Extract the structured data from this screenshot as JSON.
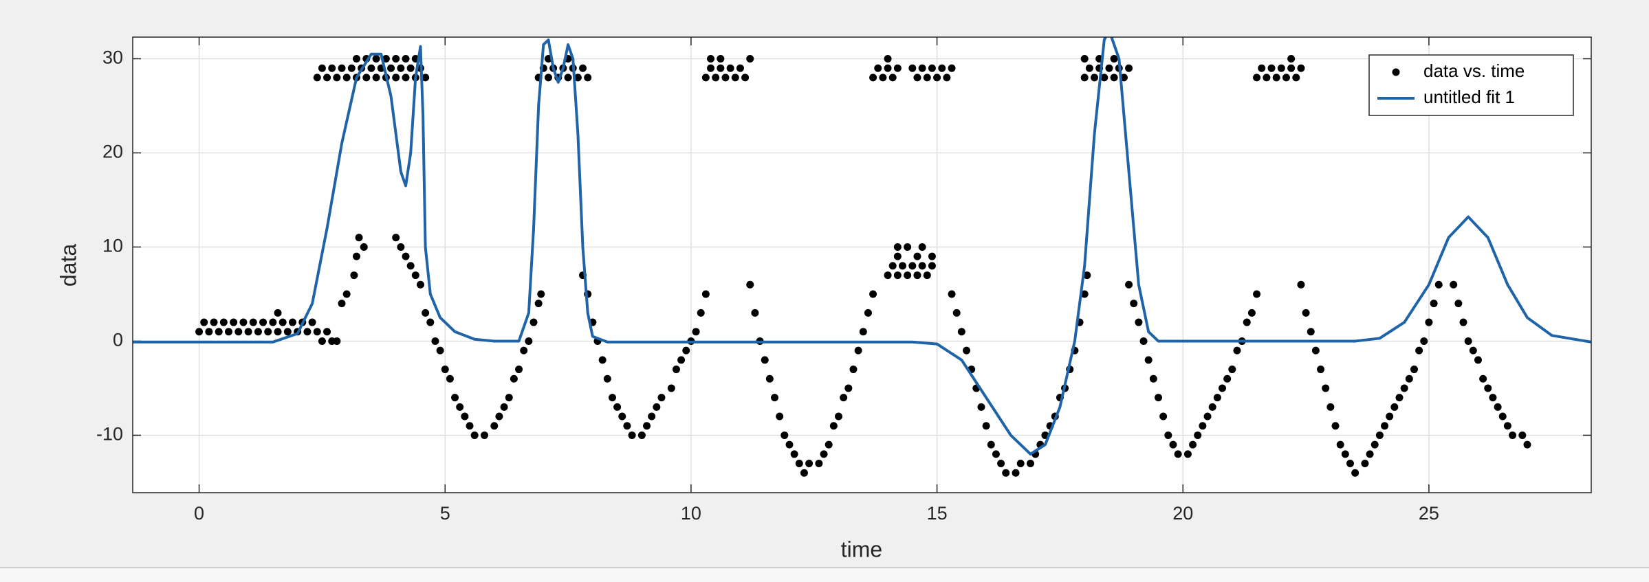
{
  "chart_data": {
    "type": "scatter",
    "xlabel": "time",
    "ylabel": "data",
    "xlim": [
      -1.35,
      28.3
    ],
    "ylim": [
      -16.1,
      32.3
    ],
    "xticks": [
      0,
      5,
      10,
      15,
      20,
      25
    ],
    "yticks": [
      -10,
      0,
      10,
      20,
      30
    ],
    "grid": true,
    "legend": "upper right",
    "series": [
      {
        "name": "data vs. time",
        "type": "scatter",
        "color": "#000000",
        "x": [
          0,
          0.2,
          0.4,
          0.6,
          0.8,
          1,
          1.2,
          1.4,
          1.6,
          1.8,
          2,
          2.2,
          2.4,
          0.1,
          0.3,
          0.5,
          0.7,
          0.9,
          1.1,
          1.3,
          1.5,
          1.7,
          1.9,
          2.1,
          2.3,
          1.6,
          2.5,
          2.6,
          2.7,
          2.8,
          2.9,
          3,
          3.15,
          3.2,
          3.25,
          3.35,
          4,
          4.1,
          4.2,
          4.3,
          4.4,
          4.5,
          4.6,
          4.7,
          4.8,
          4.9,
          5,
          5.1,
          5.2,
          5.3,
          5.4,
          5.5,
          5.6,
          5.8,
          6,
          6.1,
          6.2,
          6.3,
          6.4,
          6.5,
          6.6,
          6.7,
          6.8,
          6.9,
          6.95,
          2.4,
          2.6,
          2.8,
          3,
          3.2,
          3.4,
          3.6,
          3.8,
          4,
          4.2,
          4.4,
          4.6,
          2.5,
          2.7,
          2.9,
          3.1,
          3.3,
          3.5,
          3.7,
          3.9,
          4.1,
          4.3,
          4.5,
          3.2,
          3.4,
          3.6,
          3.8,
          4,
          4.2,
          4.4,
          6.9,
          7.1,
          7.3,
          7.5,
          7.7,
          7.9,
          7,
          7.2,
          7.4,
          7.6,
          7.8,
          7.1,
          7.5,
          7.8,
          7.9,
          8,
          8.1,
          8.2,
          8.3,
          8.4,
          8.5,
          8.6,
          8.7,
          8.8,
          9,
          9.1,
          9.2,
          9.3,
          9.4,
          9.6,
          9.7,
          9.8,
          9.9,
          10,
          10.1,
          10.2,
          10.3,
          10.3,
          10.5,
          10.7,
          10.9,
          11.1,
          10.4,
          10.6,
          10.8,
          11,
          10.4,
          10.6,
          11.2,
          11.2,
          11.3,
          11.4,
          11.5,
          11.6,
          11.7,
          11.8,
          11.9,
          12,
          12.1,
          12.2,
          12.3,
          12.4,
          12.6,
          12.7,
          12.8,
          12.9,
          13,
          13.1,
          13.2,
          13.3,
          13.4,
          13.5,
          13.6,
          13.7,
          13.7,
          13.9,
          14.1,
          13.8,
          14,
          14.2,
          14,
          14.6,
          14.8,
          15,
          15.2,
          14.5,
          14.7,
          14.9,
          15.1,
          15.3,
          14,
          14.2,
          14.4,
          14.6,
          14.8,
          14.1,
          14.3,
          14.5,
          14.7,
          14.9,
          14.2,
          14.6,
          14.9,
          14.2,
          14.4,
          14.7,
          15.3,
          15.4,
          15.5,
          15.6,
          15.7,
          15.8,
          15.9,
          16,
          16.1,
          16.2,
          16.3,
          16.4,
          16.6,
          16.7,
          16.9,
          17,
          17.1,
          17.2,
          17.3,
          17.4,
          17.5,
          17.6,
          17.7,
          17.8,
          17.9,
          18,
          18.05,
          18,
          18.2,
          18.4,
          18.6,
          18.8,
          18.1,
          18.3,
          18.5,
          18.7,
          18.9,
          18,
          18.3,
          18.6,
          18.9,
          19,
          19.1,
          19.2,
          19.3,
          19.4,
          19.5,
          19.6,
          19.7,
          19.8,
          19.9,
          20.1,
          20.2,
          20.3,
          20.4,
          20.5,
          20.6,
          20.7,
          20.8,
          20.9,
          21,
          21.1,
          21.2,
          21.3,
          21.4,
          21.5,
          21.5,
          21.7,
          21.9,
          22.1,
          22.3,
          21.6,
          21.8,
          22,
          22.2,
          22.4,
          22.2,
          22.4,
          22.5,
          22.6,
          22.7,
          22.8,
          22.9,
          23,
          23.1,
          23.2,
          23.3,
          23.4,
          23.5,
          23.7,
          23.8,
          23.9,
          24,
          24.1,
          24.2,
          24.3,
          24.4,
          24.5,
          24.6,
          24.7,
          24.8,
          24.9,
          25,
          25.1,
          25.2,
          25.5,
          25.6,
          25.7,
          25.8,
          25.9,
          26,
          26.1,
          26.2,
          26.3,
          26.4,
          26.5,
          26.6,
          26.7,
          26.9,
          27
        ],
        "values": [
          1,
          1,
          1,
          1,
          1,
          1,
          1,
          1,
          1,
          1,
          1,
          1,
          1,
          2,
          2,
          2,
          2,
          2,
          2,
          2,
          2,
          2,
          2,
          2,
          2,
          3,
          0,
          1,
          0,
          0,
          4,
          5,
          7,
          9,
          11,
          10,
          11,
          10,
          9,
          8,
          7,
          6,
          3,
          2,
          0,
          -1,
          -3,
          -4,
          -6,
          -7,
          -8,
          -9,
          -10,
          -10,
          -9,
          -8,
          -7,
          -6,
          -4,
          -3,
          -1,
          0,
          2,
          4,
          5,
          28,
          28,
          28,
          28,
          28,
          28,
          28,
          28,
          28,
          28,
          28,
          28,
          29,
          29,
          29,
          29,
          29,
          29,
          29,
          29,
          29,
          29,
          29,
          30,
          30,
          30,
          30,
          30,
          30,
          30,
          28,
          28,
          28,
          28,
          28,
          28,
          29,
          29,
          29,
          29,
          29,
          30,
          30,
          7,
          5,
          2,
          0,
          -2,
          -4,
          -6,
          -7,
          -8,
          -9,
          -10,
          -10,
          -9,
          -8,
          -7,
          -6,
          -5,
          -3,
          -2,
          -1,
          0,
          1,
          3,
          5,
          28,
          28,
          28,
          28,
          28,
          29,
          29,
          29,
          29,
          30,
          30,
          30,
          6,
          3,
          0,
          -2,
          -4,
          -6,
          -8,
          -10,
          -11,
          -12,
          -13,
          -14,
          -13,
          -13,
          -12,
          -11,
          -9,
          -8,
          -6,
          -5,
          -3,
          -1,
          1,
          3,
          5,
          28,
          28,
          28,
          29,
          29,
          29,
          30,
          28,
          28,
          28,
          28,
          29,
          29,
          29,
          29,
          29,
          7,
          7,
          7,
          7,
          7,
          8,
          8,
          8,
          8,
          8,
          9,
          9,
          9,
          10,
          10,
          10,
          5,
          3,
          1,
          -1,
          -3,
          -5,
          -7,
          -9,
          -11,
          -12,
          -13,
          -14,
          -14,
          -13,
          -13,
          -12,
          -11,
          -10,
          -9,
          -8,
          -6,
          -5,
          -3,
          -1,
          2,
          5,
          7,
          28,
          28,
          28,
          28,
          28,
          29,
          29,
          29,
          29,
          29,
          30,
          30,
          30,
          6,
          4,
          2,
          0,
          -2,
          -4,
          -6,
          -8,
          -10,
          -11,
          -12,
          -12,
          -11,
          -10,
          -9,
          -8,
          -7,
          -6,
          -5,
          -4,
          -3,
          -1,
          0,
          2,
          3,
          5,
          28,
          28,
          28,
          28,
          28,
          29,
          29,
          29,
          29,
          29,
          30,
          6,
          3,
          1,
          -1,
          -3,
          -5,
          -7,
          -9,
          -11,
          -12,
          -13,
          -14,
          -13,
          -12,
          -11,
          -10,
          -9,
          -8,
          -7,
          -6,
          -5,
          -4,
          -3,
          -1,
          0,
          2,
          4,
          6,
          6,
          4,
          2,
          0,
          -1,
          -2,
          -4,
          -5,
          -6,
          -7,
          -8,
          -9,
          -10,
          -10,
          -11
        ]
      },
      {
        "name": "untitled fit 1",
        "type": "line",
        "color": "#1f64a8",
        "x": [
          -1.35,
          1.5,
          2,
          2.3,
          2.6,
          2.9,
          3.2,
          3.5,
          3.7,
          3.9,
          4.1,
          4.2,
          4.3,
          4.4,
          4.5,
          4.55,
          4.6,
          4.7,
          4.9,
          5.2,
          5.6,
          6,
          6.5,
          6.7,
          6.8,
          6.9,
          7,
          7.1,
          7.2,
          7.3,
          7.4,
          7.5,
          7.6,
          7.7,
          7.8,
          7.9,
          8,
          8.3,
          14.5,
          15,
          15.5,
          16,
          16.5,
          16.9,
          17.2,
          17.5,
          17.8,
          18,
          18.2,
          18.4,
          18.5,
          18.7,
          18.9,
          19.1,
          19.3,
          19.5,
          20,
          23.5,
          24,
          24.5,
          25,
          25.4,
          25.8,
          26.2,
          26.6,
          27,
          27.5,
          28.3
        ],
        "values": [
          -0.1,
          -0.1,
          0.8,
          4,
          12,
          21,
          28,
          30.5,
          30.5,
          26,
          18,
          16.5,
          20,
          28,
          31.3,
          24,
          10,
          5,
          2.5,
          1,
          0.2,
          0,
          0,
          3,
          12,
          25,
          31.5,
          32,
          29,
          27.5,
          29,
          31.5,
          30,
          22,
          10,
          3,
          0.5,
          -0.1,
          -0.1,
          -0.3,
          -2,
          -6,
          -10,
          -12,
          -11,
          -7,
          0,
          8,
          22,
          32,
          33,
          30,
          18,
          6,
          1,
          0,
          0,
          0,
          0.3,
          2,
          6,
          11,
          13.2,
          11,
          6,
          2.5,
          0.6,
          -0.1
        ]
      }
    ]
  }
}
